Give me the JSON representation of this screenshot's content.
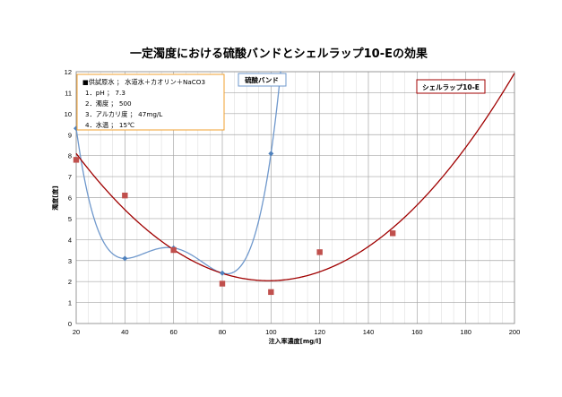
{
  "chart_data": {
    "type": "scatter",
    "title": "一定濁度における硫酸バンドとシェルラップ10-Eの効果",
    "xlabel": "注入率濃度[mg/l]",
    "ylabel": "濁度[度]",
    "xlim": [
      20,
      200
    ],
    "ylim": [
      0,
      12
    ],
    "x_ticks": [
      "20",
      "40",
      "60",
      "80",
      "100",
      "120",
      "140",
      "160",
      "180",
      "200"
    ],
    "y_ticks": [
      "0",
      "1",
      "2",
      "3",
      "4",
      "5",
      "6",
      "7",
      "8",
      "9",
      "10",
      "11",
      "12"
    ],
    "grid": true,
    "legend": {
      "position": "top-left",
      "lines": [
        "■供試原水 ； 水道水＋カオリン＋NaCO3",
        "1．pH ； 7.3",
        "2．濁度 ； 500",
        "3．アルカリ度 ； 47mg/L",
        "4．水温 ； 15℃"
      ]
    },
    "series": [
      {
        "name": "硫酸バンド",
        "color": "#4F81BD",
        "marker": "diamond",
        "x": [
          20,
          40,
          60,
          80,
          100
        ],
        "y": [
          9.3,
          3.1,
          3.6,
          2.4,
          8.1
        ],
        "trend": "polynomial"
      },
      {
        "name": "シェルラップ10-E",
        "color": "#C0504D",
        "marker": "square",
        "x": [
          20,
          40,
          60,
          80,
          100,
          120,
          150
        ],
        "y": [
          7.8,
          6.1,
          3.5,
          1.9,
          1.5,
          3.4,
          4.3
        ],
        "trend": "polynomial"
      }
    ]
  },
  "colors": {
    "blue_curve": "#6F98CC",
    "red_curve": "#A00000",
    "legend_border": "#F0A030",
    "label_border_blue": "#6F98CC",
    "label_border_red": "#A00000"
  }
}
